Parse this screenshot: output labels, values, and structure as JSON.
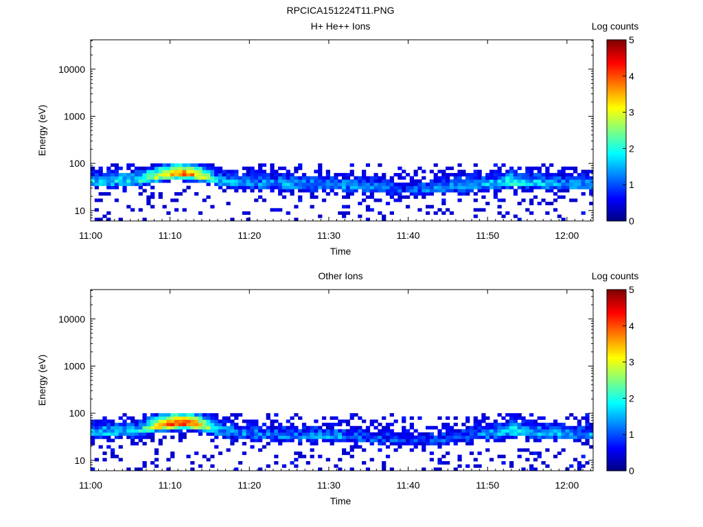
{
  "figure_title": "RPCICA151224T11.PNG",
  "chart_data": [
    {
      "type": "heatmap",
      "title": "H+ He++ Ions",
      "xlabel": "Time",
      "ylabel": "Energy (eV)",
      "x_ticks": [
        "11:00",
        "11:10",
        "11:20",
        "11:30",
        "11:40",
        "11:50",
        "12:00"
      ],
      "xlim": [
        "11:00",
        "12:03"
      ],
      "y_scale": "log",
      "y_ticks": [
        10,
        100,
        1000,
        10000
      ],
      "ylim": [
        6,
        42000
      ],
      "colorbar": {
        "label": "Log counts",
        "ticks": [
          0,
          1,
          2,
          3,
          4,
          5
        ],
        "range": [
          0,
          5
        ]
      },
      "grid": false,
      "profile": {
        "times_min": [
          0,
          6,
          9,
          11,
          13,
          15,
          16,
          18,
          21,
          24,
          27,
          30,
          33,
          36,
          38,
          40,
          42,
          45,
          48,
          51,
          53,
          55,
          57,
          59,
          61,
          63
        ],
        "peak_counts": [
          1.6,
          1.8,
          3.1,
          3.8,
          3.6,
          2.4,
          1.5,
          1.4,
          1.3,
          1.4,
          1.3,
          1.5,
          1.2,
          1.1,
          1.0,
          0.9,
          1.1,
          1.3,
          1.4,
          1.6,
          2.1,
          1.7,
          1.6,
          1.5,
          1.4,
          1.4
        ],
        "band_center_eV": [
          40,
          42,
          55,
          60,
          58,
          50,
          40,
          38,
          36,
          35,
          34,
          33,
          32,
          30,
          28,
          26,
          27,
          30,
          33,
          36,
          40,
          38,
          36,
          35,
          35,
          35
        ]
      }
    },
    {
      "type": "heatmap",
      "title": "Other Ions",
      "xlabel": "Time",
      "ylabel": "Energy (eV)",
      "x_ticks": [
        "11:00",
        "11:10",
        "11:20",
        "11:30",
        "11:40",
        "11:50",
        "12:00"
      ],
      "xlim": [
        "11:00",
        "12:03"
      ],
      "y_scale": "log",
      "y_ticks": [
        10,
        100,
        1000,
        10000
      ],
      "ylim": [
        6,
        42000
      ],
      "colorbar": {
        "label": "Log counts",
        "ticks": [
          0,
          1,
          2,
          3,
          4,
          5
        ],
        "range": [
          0,
          5
        ]
      },
      "grid": false,
      "profile": {
        "times_min": [
          0,
          6,
          9,
          11,
          13,
          15,
          16,
          18,
          21,
          24,
          27,
          30,
          33,
          36,
          38,
          40,
          42,
          45,
          48,
          51,
          53,
          55,
          57,
          59,
          61,
          63
        ],
        "peak_counts": [
          1.5,
          1.7,
          3.6,
          4.1,
          3.9,
          2.5,
          1.5,
          1.3,
          1.2,
          1.2,
          1.1,
          1.4,
          1.1,
          1.0,
          0.9,
          0.8,
          0.9,
          1.0,
          1.2,
          1.4,
          2.0,
          1.6,
          1.5,
          1.4,
          1.3,
          1.3
        ],
        "band_center_eV": [
          38,
          40,
          55,
          60,
          58,
          50,
          40,
          36,
          34,
          33,
          32,
          32,
          30,
          28,
          26,
          24,
          25,
          28,
          32,
          36,
          42,
          38,
          36,
          35,
          35,
          35
        ]
      }
    }
  ]
}
